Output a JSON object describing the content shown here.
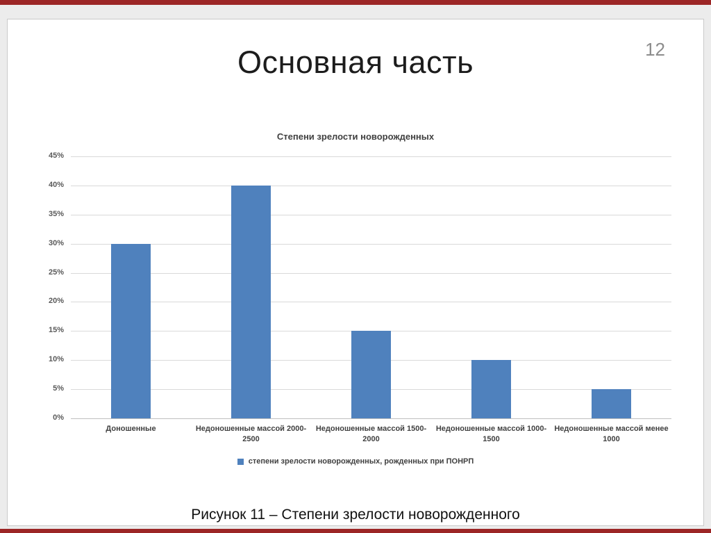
{
  "slide": {
    "title": "Основная часть",
    "page_number": "12",
    "caption": "Рисунок 11 – Степени зрелости новорожденного",
    "accent_color": "#9c2626",
    "background_color": "#ffffff"
  },
  "chart_data": {
    "type": "bar",
    "title": "Степени зрелости новорожденных",
    "categories": [
      "Доношенные",
      "Недоношенные массой 2000-2500",
      "Недоношенные массой 1500-2000",
      "Недоношенные массой 1000-1500",
      "Недоношенные массой менее 1000"
    ],
    "values": [
      30,
      40,
      15,
      10,
      5
    ],
    "value_unit": "%",
    "ylim": [
      0,
      45
    ],
    "ytick_step": 5,
    "ytick_labels": [
      "0%",
      "5%",
      "10%",
      "15%",
      "20%",
      "25%",
      "30%",
      "35%",
      "40%",
      "45%"
    ],
    "grid": true,
    "legend_position": "bottom",
    "bar_color": "#4f81bd",
    "legend": [
      {
        "label": "степени зрелости новорожденных, рожденных при ПОНРП",
        "color": "#4f81bd"
      }
    ]
  }
}
